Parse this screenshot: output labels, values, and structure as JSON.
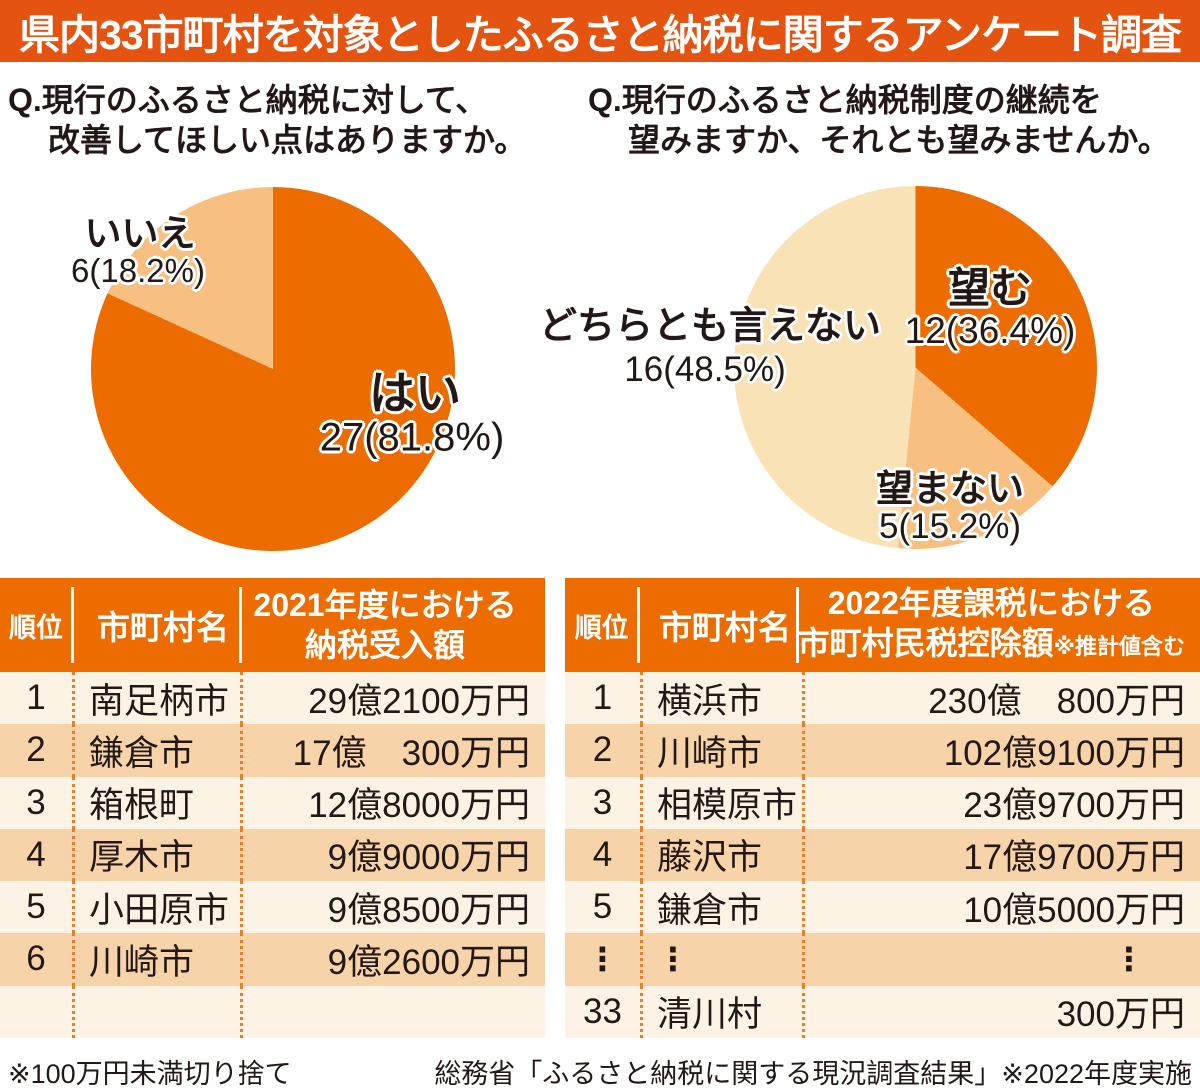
{
  "title": "県内33市町村を対象としたふるさと納税に関するアンケート調査",
  "questions": {
    "improvement": {
      "line1": "Q.現行のふるさと納税に対して、",
      "line2": "改善してほしい点はありますか。"
    },
    "continuation": {
      "line1": "Q.現行のふるさと納税制度の継続を",
      "line2": "望みますか、それとも望みませんか。"
    }
  },
  "colors": {
    "banner_bg": "#E4530F",
    "pie_dark": "#EC6C00",
    "pie_light": "#F7BF80",
    "pie_cream": "#FAE2B7",
    "header_bg": "#EC6C00",
    "row_light": "#FDF3E5",
    "row_peach": "#F6D3A8",
    "dot_line": "#E87E2E",
    "text_dark": "#231815",
    "text_white": "#FFFFFF"
  },
  "chart_data": [
    {
      "type": "pie",
      "title": "Q.現行のふるさと納税に対して、改善してほしい点はありますか。",
      "labels": [
        "はい",
        "いいえ"
      ],
      "values": [
        27,
        6
      ],
      "percents": [
        81.8,
        18.2
      ],
      "percent_labels": [
        "27(81.8%)",
        "6(18.2%)"
      ],
      "colors": [
        "#EC6C00",
        "#F7BF80"
      ],
      "start_angle": "top",
      "direction": "clockwise",
      "total": 33
    },
    {
      "type": "pie",
      "title": "Q.現行のふるさと納税制度の継続を望みますか、それとも望みませんか。",
      "labels": [
        "望む",
        "望まない",
        "どちらとも言えない"
      ],
      "values": [
        12,
        5,
        16
      ],
      "percents": [
        36.4,
        15.2,
        48.5
      ],
      "percent_labels": [
        "12(36.4%)",
        "5(15.2%)",
        "16(48.5%)"
      ],
      "colors": [
        "#EC6C00",
        "#F7BF80",
        "#FAE2B7"
      ],
      "start_angle": "top",
      "direction": "clockwise",
      "total": 33
    },
    {
      "type": "table",
      "header": {
        "rank": "順位",
        "name": "市町村名",
        "value_line1": "2021年度における",
        "value_line2": "納税受入額",
        "value_note": ""
      },
      "rows": [
        [
          "1",
          "南足柄市",
          "29億2100万円"
        ],
        [
          "2",
          "鎌倉市",
          "17億　300万円"
        ],
        [
          "3",
          "箱根町",
          "12億8000万円"
        ],
        [
          "4",
          "厚木市",
          "9億9000万円"
        ],
        [
          "5",
          "小田原市",
          "9億8500万円"
        ],
        [
          "6",
          "川崎市",
          "9億2600万円"
        ],
        [
          "",
          "",
          ""
        ]
      ]
    },
    {
      "type": "table",
      "header": {
        "rank": "順位",
        "name": "市町村名",
        "value_line1": "2022年度課税における",
        "value_line2": "市町村民税控除額",
        "value_note": "※推計値含む"
      },
      "rows": [
        [
          "1",
          "横浜市",
          "230億　800万円"
        ],
        [
          "2",
          "川崎市",
          "102億9100万円"
        ],
        [
          "3",
          "相模原市",
          "23億9700万円"
        ],
        [
          "4",
          "藤沢市",
          "17億9700万円"
        ],
        [
          "5",
          "鎌倉市",
          "10億5000万円"
        ],
        [
          "⋮",
          "⋮",
          "⋮"
        ],
        [
          "33",
          "清川村",
          "300万円"
        ]
      ]
    }
  ],
  "footer": {
    "note_left": "※100万円未満切り捨て",
    "source_right": "総務省「ふるさと納税に関する現況調査結果」※2022年度実施"
  }
}
